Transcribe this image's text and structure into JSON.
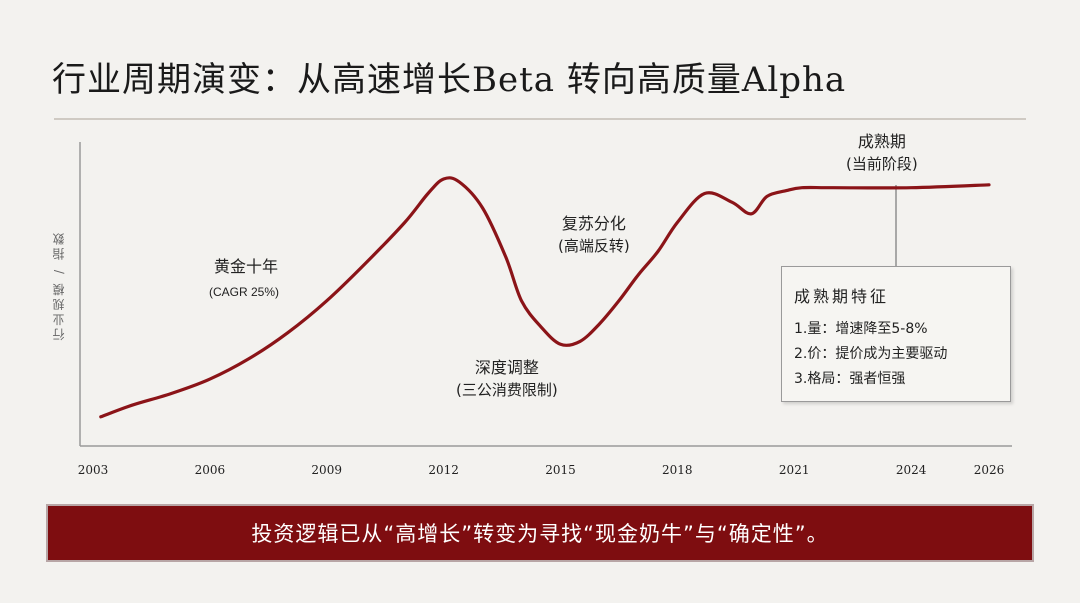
{
  "title": "行业周期演变：从高速增长Beta 转向高质量Alpha",
  "chart_data": {
    "type": "line",
    "ylabel": "行业规模 / 指数",
    "x_ticks": [
      "2003",
      "2006",
      "2009",
      "2012",
      "2015",
      "2018",
      "2021",
      "2024",
      "2026"
    ],
    "x_range": [
      2003,
      2026
    ],
    "y_range": [
      0,
      100
    ],
    "series": [
      {
        "x": [
          2003.2,
          2004,
          2005,
          2006,
          2007,
          2008,
          2009,
          2010,
          2011,
          2011.6,
          2012,
          2012.4,
          2013,
          2013.6,
          2014,
          2014.5,
          2015,
          2015.5,
          2016,
          2016.5,
          2017,
          2017.5,
          2018,
          2018.7,
          2019.4,
          2019.9,
          2020.3,
          2020.8,
          2021.2,
          2022,
          2024,
          2026
        ],
        "y": [
          8,
          12,
          16,
          21,
          28,
          37,
          48,
          61,
          75,
          85,
          90,
          89,
          80,
          63,
          48,
          39,
          33,
          34,
          40,
          48,
          57,
          65,
          75,
          85,
          82,
          78,
          84,
          86,
          87,
          87,
          87,
          88
        ]
      }
    ],
    "annotations": [
      {
        "line1": "黄金十年",
        "line2": "(CAGR    25%)"
      },
      {
        "line1": "深度调整",
        "line2": "(三公消费限制)"
      },
      {
        "line1": "复苏分化",
        "line2": "(高端反转)"
      },
      {
        "line1": "成熟期",
        "line2": "(当前阶段)"
      }
    ],
    "grid": false,
    "line_color": "#8b1418"
  },
  "feature_box": {
    "title": "成熟期特征",
    "items": [
      "1.量：增速降至5-8%",
      "2.价：提价成为主要驱动",
      "3.格局：强者恒强"
    ]
  },
  "banner": "投资逻辑已从“高增长”转变为寻找“现金奶牛”与“确定性”。"
}
